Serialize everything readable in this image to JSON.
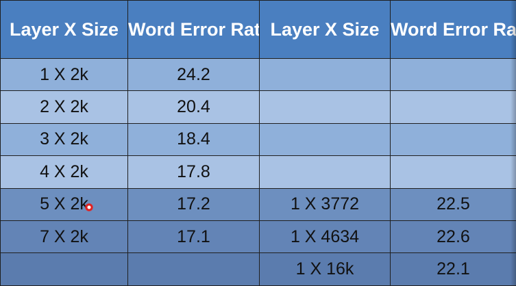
{
  "table": {
    "headers": [
      "Layer X Size",
      "Word Error Rate (%)",
      "Layer X Size",
      "Word Error Rate (%)"
    ],
    "rows": [
      [
        "1 X 2k",
        "24.2",
        "",
        ""
      ],
      [
        "2 X 2k",
        "20.4",
        "",
        ""
      ],
      [
        "3 X 2k",
        "18.4",
        "",
        ""
      ],
      [
        "4 X 2k",
        "17.8",
        "",
        ""
      ],
      [
        "5 X 2k",
        "17.2",
        "1 X 3772",
        "22.5"
      ],
      [
        "7 X 2k",
        "17.1",
        "1 X 4634",
        "22.6"
      ],
      [
        "",
        "",
        "1 X 16k",
        "22.1"
      ]
    ]
  }
}
